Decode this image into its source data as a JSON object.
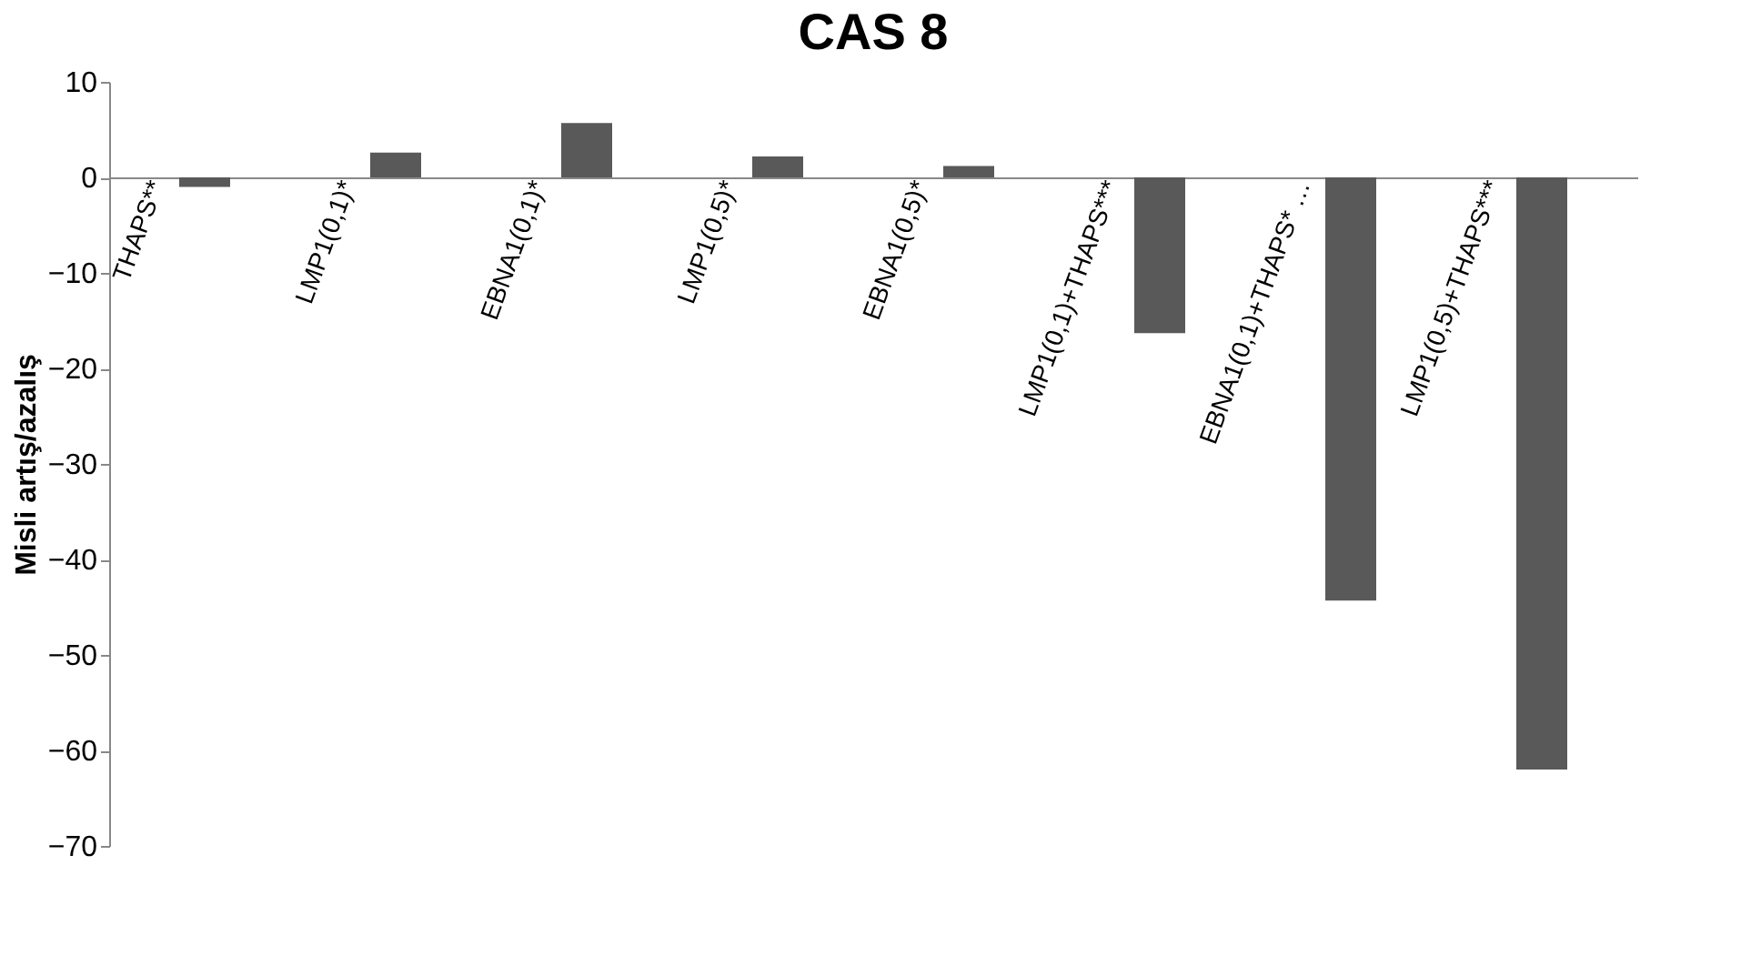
{
  "chart_data": {
    "type": "bar",
    "title": "CAS 8",
    "ylabel": "Misli artış/azalış",
    "categories": [
      "THAPS**",
      "LMP1(0,1)*",
      "EBNA1(0,1)*",
      "LMP1(0,5)*",
      "EBNA1(0,5)*",
      "LMP1(0,1)+THAPS***",
      "EBNA1(0,1)+THAPS* …",
      "LMP1(0,5)+THAPS***"
    ],
    "values": [
      -1,
      2.6,
      5.7,
      2.2,
      1.2,
      -16.3,
      -44.3,
      -62
    ],
    "color": "#595959",
    "ylim": [
      -70,
      10
    ],
    "yticks": [
      -70,
      -60,
      -50,
      -40,
      -30,
      -20,
      -10,
      0,
      10
    ],
    "grid": false
  }
}
